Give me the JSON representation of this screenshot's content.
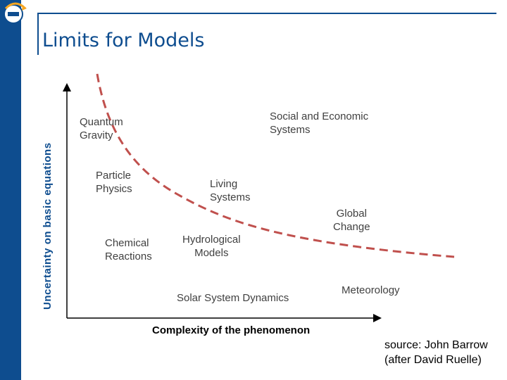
{
  "title": "Limits for Models",
  "y_axis_label": "Uncertainty on basic equations",
  "x_axis_label": "Complexity of the phenomenon",
  "items": [
    {
      "line1": "Quantum",
      "line2": "Gravity"
    },
    {
      "line1": "Particle",
      "line2": "Physics"
    },
    {
      "line1": "Chemical",
      "line2": "Reactions"
    },
    {
      "line1": "Social and Economic",
      "line2": "Systems"
    },
    {
      "line1": "Living",
      "line2": "Systems"
    },
    {
      "line1": "Hydrological",
      "line2": "Models"
    },
    {
      "line1": "Global",
      "line2": "Change"
    },
    {
      "line1": "Solar System Dynamics",
      "line2": ""
    },
    {
      "line1": "Meteorology",
      "line2": ""
    }
  ],
  "source": {
    "line1": "source: John Barrow",
    "line2": "(after David Ruelle)"
  },
  "colors": {
    "brand": "#0e4d8f",
    "curve": "#c0504d",
    "logo_accent": "#f5a623"
  }
}
